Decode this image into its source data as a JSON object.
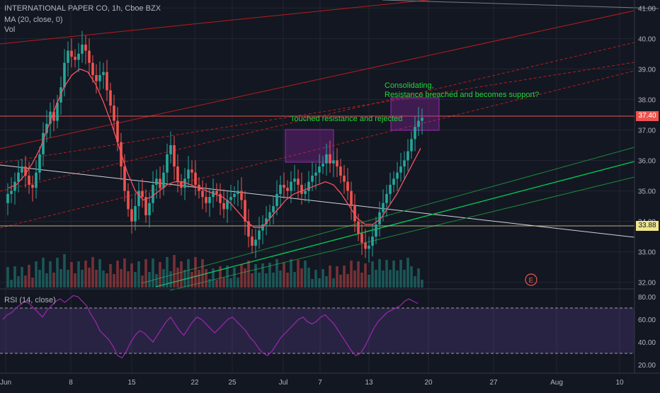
{
  "header": {
    "symbol_line": "INTERNATIONAL PAPER CO, 1h, Cboe BZX",
    "ma_line": "MA (20, close, 0)",
    "vol_label": "Vol"
  },
  "rsi_header": {
    "label": "RSI (14, close)"
  },
  "annotations": {
    "touched": "Touched resistance and rejected",
    "consolidating": "Consolidating,",
    "resistance": "Resistance breached and becomes support?",
    "earnings_marker": "E"
  },
  "price_tags": {
    "current": "37.40",
    "support": "33.88"
  },
  "colors": {
    "background": "#131722",
    "up_candle": "#26a69a",
    "down_candle": "#ef5350",
    "ma_line": "#f7525f",
    "rsi_line": "#9c27b0",
    "rsi_band": "#7e57c2",
    "annotation_text": "#22d63a",
    "box": "#9c27b0",
    "current_tag": "#ef5350",
    "support_tag": "#f0e68c"
  },
  "chart_data": [
    {
      "type": "candlestick",
      "title": "INTERNATIONAL PAPER CO, 1h, Cboe BZX",
      "xlabel": "",
      "ylabel": "",
      "x_ticks": [
        "Jun",
        "8",
        "15",
        "22",
        "25",
        "Jul",
        "7",
        "13",
        "20",
        "27",
        "Aug",
        "10"
      ],
      "y_ticks": [
        "32.00",
        "33.00",
        "34.00",
        "35.00",
        "36.00",
        "37.00",
        "38.00",
        "39.00",
        "40.00",
        "41.00"
      ],
      "ylim": [
        31.9,
        41.1
      ],
      "grid": true,
      "price_series": [
        34.6,
        34.9,
        35.0,
        35.3,
        35.6,
        35.8,
        35.5,
        35.2,
        35.1,
        35.6,
        36.2,
        36.9,
        37.2,
        37.6,
        37.3,
        37.9,
        38.4,
        39.2,
        39.6,
        39.4,
        39.3,
        39.5,
        39.8,
        39.6,
        39.2,
        38.8,
        38.6,
        38.8,
        38.9,
        38.3,
        37.8,
        37.3,
        36.6,
        35.8,
        35.0,
        34.4,
        34.0,
        34.5,
        35.0,
        34.8,
        34.2,
        34.6,
        35.2,
        35.4,
        35.1,
        35.6,
        36.2,
        36.5,
        35.8,
        35.3,
        35.1,
        35.4,
        35.7,
        35.6,
        35.2,
        35.0,
        34.8,
        34.6,
        34.8,
        35.0,
        34.9,
        34.6,
        34.4,
        34.7,
        34.8,
        34.9,
        35.0,
        34.7,
        34.0,
        33.5,
        33.2,
        33.4,
        33.7,
        33.9,
        34.1,
        34.3,
        34.5,
        34.9,
        35.2,
        35.1,
        35.0,
        35.3,
        35.4,
        35.2,
        34.9,
        35.0,
        35.3,
        35.5,
        35.6,
        35.8,
        35.9,
        36.2,
        35.9,
        36.0,
        35.8,
        35.5,
        35.3,
        35.0,
        34.5,
        34.0,
        33.6,
        33.3,
        33.1,
        33.2,
        33.5,
        33.9,
        34.3,
        34.6,
        34.9,
        35.2,
        35.4,
        35.6,
        35.8,
        36.0,
        36.3,
        36.7,
        37.1,
        37.3,
        37.4
      ],
      "ma_series": [
        35.1,
        35.2,
        35.5,
        35.9,
        36.4,
        37.1,
        37.8,
        38.4,
        38.8,
        39.0,
        38.9,
        38.5,
        37.9,
        37.2,
        36.4,
        35.6,
        35.0,
        34.7,
        34.8,
        35.0,
        35.2,
        35.3,
        35.3,
        35.2,
        35.1,
        35.0,
        34.9,
        34.8,
        34.6,
        34.3,
        34.0,
        33.8,
        33.8,
        34.1,
        34.4,
        34.7,
        34.9,
        35.0,
        35.1,
        35.2,
        35.3,
        35.2,
        34.9,
        34.5,
        34.1,
        33.9,
        33.9,
        34.1,
        34.5,
        34.9,
        35.4,
        35.9,
        36.4
      ],
      "rsi": {
        "label": "RSI (14, close)",
        "y_ticks": [
          "20.00",
          "40.00",
          "60.00",
          "80.00"
        ],
        "band": [
          30,
          70
        ],
        "ylim": [
          15,
          85
        ],
        "values": [
          60,
          64,
          66,
          70,
          73,
          76,
          74,
          70,
          66,
          62,
          68,
          72,
          76,
          78,
          75,
          78,
          81,
          80,
          76,
          72,
          64,
          58,
          50,
          46,
          42,
          36,
          28,
          26,
          32,
          40,
          46,
          50,
          48,
          44,
          40,
          46,
          52,
          58,
          62,
          56,
          50,
          46,
          52,
          58,
          62,
          60,
          56,
          52,
          48,
          52,
          56,
          60,
          62,
          58,
          54,
          50,
          44,
          40,
          34,
          30,
          28,
          32,
          38,
          44,
          48,
          52,
          56,
          60,
          62,
          58,
          56,
          58,
          62,
          64,
          60,
          56,
          50,
          44,
          38,
          32,
          28,
          30,
          36,
          44,
          52,
          58,
          62,
          66,
          68,
          70,
          72,
          76,
          78,
          76,
          74
        ]
      }
    }
  ]
}
